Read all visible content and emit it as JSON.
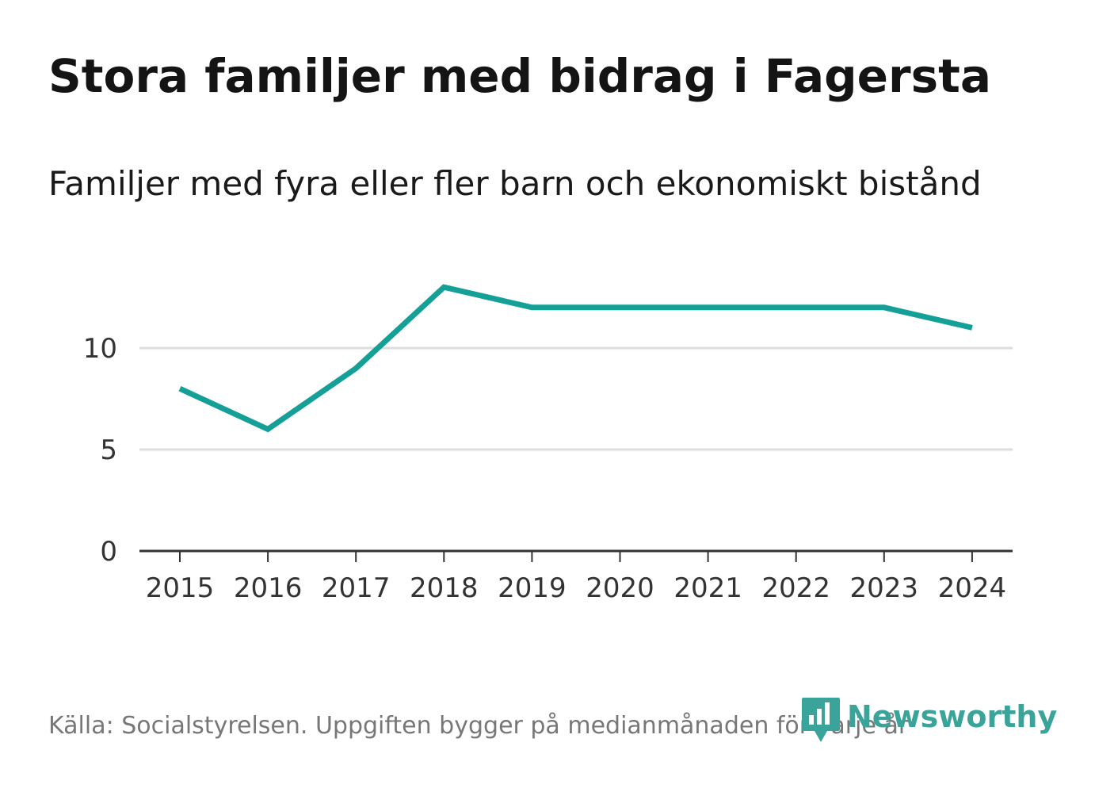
{
  "title": "Stora familjer med bidrag i Fagersta",
  "subtitle": "Familjer med fyra eller fler barn och ekonomiskt bistånd",
  "source": "Källa: Socialstyrelsen. Uppgiften bygger på medianmånaden för varje år",
  "brand": {
    "name": "Newsworthy",
    "icon": "bar-chart-logo-icon",
    "color": "#3aa39a"
  },
  "chart_data": {
    "type": "line",
    "x": [
      "2015",
      "2016",
      "2017",
      "2018",
      "2019",
      "2020",
      "2021",
      "2022",
      "2023",
      "2024"
    ],
    "series": [
      {
        "values": [
          8,
          6,
          9,
          13,
          12,
          12,
          12,
          12,
          12,
          11
        ],
        "color": "#14a097"
      }
    ],
    "yticks": [
      0,
      5,
      10
    ],
    "ytick_labels": [
      "0",
      "5",
      "10"
    ],
    "ylim": [
      0,
      13
    ],
    "grid": true,
    "gridline_color": "#dddddd",
    "axis_color": "#333333"
  }
}
